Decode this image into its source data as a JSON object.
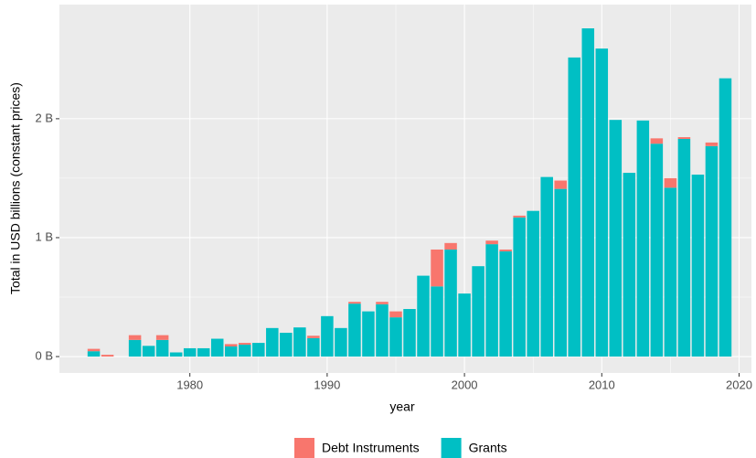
{
  "chart_data": {
    "type": "bar",
    "stacked": true,
    "x_label": "year",
    "y_label": "Total in USD billions (constant prices)",
    "x": [
      1973,
      1974,
      1976,
      1977,
      1978,
      1979,
      1980,
      1981,
      1982,
      1983,
      1984,
      1985,
      1986,
      1987,
      1988,
      1989,
      1990,
      1991,
      1992,
      1993,
      1994,
      1995,
      1996,
      1997,
      1998,
      1999,
      2000,
      2001,
      2002,
      2003,
      2004,
      2005,
      2006,
      2007,
      2008,
      2009,
      2010,
      2011,
      2012,
      2013,
      2014,
      2015,
      2016,
      2017,
      2018,
      2019
    ],
    "series": [
      {
        "name": "Grants",
        "color": "#00BFC4",
        "values": [
          0.045,
          0,
          0.14,
          0.09,
          0.14,
          0.035,
          0.07,
          0.07,
          0.15,
          0.085,
          0.1,
          0.115,
          0.24,
          0.2,
          0.245,
          0.155,
          0.34,
          0.24,
          0.445,
          0.38,
          0.44,
          0.33,
          0.4,
          0.68,
          0.59,
          0.9,
          0.53,
          0.76,
          0.945,
          0.885,
          1.17,
          1.225,
          1.51,
          1.41,
          2.515,
          2.76,
          2.59,
          1.99,
          1.545,
          1.985,
          1.79,
          1.42,
          1.83,
          1.53,
          1.77,
          2.34
        ]
      },
      {
        "name": "Debt Instruments",
        "color": "#F8766D",
        "values": [
          0.02,
          0.015,
          0.04,
          0,
          0.04,
          0,
          0,
          0,
          0,
          0.02,
          0.015,
          0,
          0,
          0,
          0,
          0.02,
          0,
          0,
          0.015,
          0,
          0.02,
          0.05,
          0,
          0,
          0.31,
          0.055,
          0,
          0,
          0.03,
          0.015,
          0.015,
          0,
          0,
          0.07,
          0,
          0,
          0,
          0,
          0,
          0,
          0.045,
          0.08,
          0.015,
          0,
          0.03,
          0
        ]
      }
    ],
    "legend_order": [
      1,
      0
    ],
    "xlim": [
      1970.5,
      2020.9
    ],
    "xticks": [
      1980,
      1990,
      2000,
      2010,
      2020
    ],
    "ylim": [
      -0.138,
      2.96
    ],
    "yticks": [
      {
        "value": 0,
        "label": "0 B"
      },
      {
        "value": 1,
        "label": "1 B"
      },
      {
        "value": 2,
        "label": "2 B"
      }
    ],
    "grid": true,
    "legend": "bottom"
  }
}
